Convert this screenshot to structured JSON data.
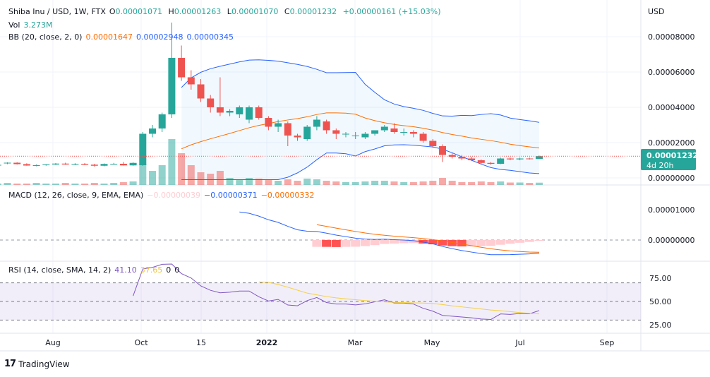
{
  "header": {
    "symbol": "Shiba Inu / USD, 1W, FTX",
    "open_label": "O",
    "open": "0.00001071",
    "high_label": "H",
    "high": "0.00001263",
    "low_label": "L",
    "low": "0.00001070",
    "close_label": "C",
    "close": "0.00001232",
    "change": "+0.00000161 (+15.03%)"
  },
  "vol_legend": {
    "label": "Vol",
    "value": "3.273M"
  },
  "bb_legend": {
    "label": "BB (20, close, 2, 0)",
    "basis": "0.00001647",
    "upper": "0.00002948",
    "lower": "0.00000345"
  },
  "macd_legend": {
    "label": "MACD (12, 26, close, 9, EMA, EMA)",
    "hist": "−0.00000039",
    "macd": "−0.00000371",
    "signal": "−0.00000332"
  },
  "rsi_legend": {
    "label": "RSI (14, close, SMA, 14, 2)",
    "rsi": "41.10",
    "ma": "37.65",
    "u1": "0",
    "u2": "0"
  },
  "price_axis": {
    "currency": "USD",
    "ticks": [
      "0.00008000",
      "0.00006000",
      "0.00004000",
      "0.00002000",
      "0.00000000"
    ],
    "last_price": "0.00001232",
    "countdown": "4d 20h"
  },
  "macd_axis": {
    "ticks": [
      "0.00001000",
      "0.00000000"
    ]
  },
  "rsi_axis": {
    "ticks": [
      "75.00",
      "50.00",
      "25.00"
    ]
  },
  "time_axis": [
    "Aug",
    "Oct",
    "15",
    "2022",
    "Mar",
    "May",
    "Jul",
    "Sep"
  ],
  "footer": {
    "brand": "TradingView"
  },
  "colors": {
    "up": "#26a69a",
    "down": "#ef5350",
    "bb_basis": "#ff6d00",
    "bb_band": "#2962ff",
    "macd": "#2962ff",
    "signal": "#ff6d00",
    "rsi": "#7e57c2",
    "rsi_ma": "#f4d03f"
  },
  "chart_data": {
    "type": "candlestick",
    "yunit": "USD",
    "ohlc": [
      [
        7e-06,
        7.6e-06,
        6.8e-06,
        7.4e-06
      ],
      [
        8.2e-06,
        8.8e-06,
        7.8e-06,
        8.6e-06
      ],
      [
        8.6e-06,
        8.9e-06,
        7.6e-06,
        7.8e-06
      ],
      [
        7.8e-06,
        8.3e-06,
        6.9e-06,
        7e-06
      ],
      [
        7e-06,
        7.6e-06,
        6.6e-06,
        7.2e-06
      ],
      [
        7.2e-06,
        7.8e-06,
        6.9e-06,
        7.6e-06
      ],
      [
        7.6e-06,
        8.4e-06,
        7.3e-06,
        8.1e-06
      ],
      [
        8.1e-06,
        8.6e-06,
        7.4e-06,
        7.6e-06
      ],
      [
        7.6e-06,
        8.3e-06,
        7.2e-06,
        8e-06
      ],
      [
        8e-06,
        8.4e-06,
        7.2e-06,
        7.5e-06
      ],
      [
        7.5e-06,
        8e-06,
        6.4e-06,
        6.9e-06
      ],
      [
        6.9e-06,
        8.2e-06,
        6.6e-06,
        7.9e-06
      ],
      [
        7.9e-06,
        8.5e-06,
        7.5e-06,
        8e-06
      ],
      [
        8e-06,
        9e-06,
        7e-06,
        7.1e-06
      ],
      [
        7.1e-06,
        8.8e-06,
        6.9e-06,
        8.5e-06
      ],
      [
        7.2e-06,
        2.6e-05,
        6.8e-06,
        2.5e-05
      ],
      [
        2.5e-05,
        3e-05,
        2.3e-05,
        2.8e-05
      ],
      [
        2.8e-05,
        3.7e-05,
        2.6e-05,
        3.6e-05
      ],
      [
        3.6e-05,
        8.8e-05,
        3.4e-05,
        6.8e-05
      ],
      [
        6.8e-05,
        7.5e-05,
        5.5e-05,
        5.7e-05
      ],
      [
        5.7e-05,
        6.1e-05,
        5e-05,
        5.3e-05
      ],
      [
        5.3e-05,
        5.6e-05,
        4.3e-05,
        4.5e-05
      ],
      [
        4.5e-05,
        4.7e-05,
        3.7e-05,
        4e-05
      ],
      [
        4e-05,
        5.7e-05,
        3.5e-05,
        3.7e-05
      ],
      [
        3.7e-05,
        3.9e-05,
        3.5e-05,
        3.8e-05
      ],
      [
        3.6e-05,
        4.1e-05,
        3.4e-05,
        4e-05
      ],
      [
        3.3e-05,
        4.1e-05,
        3.1e-05,
        4e-05
      ],
      [
        4e-05,
        4.1e-05,
        3.3e-05,
        3.4e-05
      ],
      [
        3.4e-05,
        3.5e-05,
        2.7e-05,
        2.9e-05
      ],
      [
        2.9e-05,
        3.3e-05,
        2.6e-05,
        3.1e-05
      ],
      [
        3.1e-05,
        3.2e-05,
        1.8e-05,
        2.4e-05
      ],
      [
        2.4e-05,
        2.5e-05,
        2.1e-05,
        2.3e-05
      ],
      [
        2.2e-05,
        3e-05,
        2.1e-05,
        2.9e-05
      ],
      [
        2.9e-05,
        3.5e-05,
        2.7e-05,
        3.3e-05
      ],
      [
        3.2e-05,
        3.3e-05,
        2.5e-05,
        2.7e-05
      ],
      [
        2.7e-05,
        2.8e-05,
        2.2e-05,
        2.5e-05
      ],
      [
        2.5e-05,
        2.6e-05,
        2.3e-05,
        2.5e-05
      ],
      [
        2.4e-05,
        2.6e-05,
        2.2e-05,
        2.4e-05
      ],
      [
        2.3e-05,
        2.6e-05,
        2.2e-05,
        2.5e-05
      ],
      [
        2.5e-05,
        2.7e-05,
        2.4e-05,
        2.7e-05
      ],
      [
        2.7e-05,
        3e-05,
        2.6e-05,
        2.9e-05
      ],
      [
        2.8e-05,
        3.1e-05,
        2.5e-05,
        2.6e-05
      ],
      [
        2.6e-05,
        2.8e-05,
        2.4e-05,
        2.6e-05
      ],
      [
        2.6e-05,
        2.7e-05,
        2.3e-05,
        2.5e-05
      ],
      [
        2.5e-05,
        2.6e-05,
        2e-05,
        2.1e-05
      ],
      [
        2.1e-05,
        2.2e-05,
        1.7e-05,
        1.8e-05
      ],
      [
        1.8e-05,
        1.9e-05,
        9e-06,
        1.3e-05
      ],
      [
        1.3e-05,
        1.4e-05,
        1.1e-05,
        1.2e-05
      ],
      [
        1.2e-05,
        1.3e-05,
        1e-05,
        1.1e-05
      ],
      [
        1.1e-05,
        1.2e-05,
        9.5e-06,
        1e-05
      ],
      [
        1e-05,
        1.05e-05,
        8e-06,
        8.5e-06
      ],
      [
        8.5e-06,
        9e-06,
        7.5e-06,
        8e-06
      ],
      [
        8e-06,
        1.15e-05,
        7.8e-06,
        1.1e-05
      ],
      [
        1.1e-05,
        1.15e-05,
        1e-05,
        1.05e-05
      ],
      [
        1.05e-05,
        1.15e-05,
        1e-05,
        1.1e-05
      ],
      [
        1.1e-05,
        1.15e-05,
        1.04e-05,
        1.071e-05
      ],
      [
        1.071e-05,
        1.263e-05,
        1.07e-05,
        1.232e-05
      ]
    ],
    "volume_millions": [
      2,
      3,
      2,
      2,
      3,
      2,
      2,
      3,
      2,
      2,
      3,
      2,
      3,
      4,
      5,
      30,
      20,
      28,
      65,
      45,
      28,
      18,
      16,
      20,
      10,
      8,
      10,
      9,
      7,
      6,
      8,
      6,
      9,
      8,
      6,
      5,
      4,
      4,
      5,
      6,
      6,
      5,
      4,
      4,
      5,
      6,
      10,
      6,
      4,
      4,
      5,
      4,
      5,
      3.5,
      3.5,
      3,
      3.273
    ],
    "price_ylim": [
      0,
      9e-05
    ],
    "macd_ylim": [
      -4e-06,
      1.5e-05
    ],
    "rsi_ylim": [
      10,
      90
    ],
    "rsi_levels": [
      70,
      50,
      30
    ],
    "grid": true
  }
}
